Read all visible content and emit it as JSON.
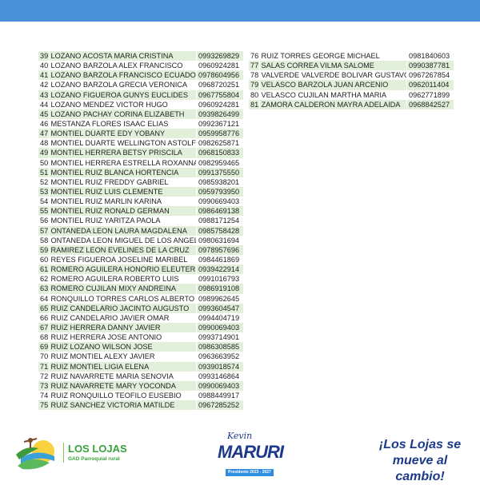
{
  "colors": {
    "header_bar": "#4a90d9",
    "row_alt": "#e2efda"
  },
  "left_table": [
    [
      "39",
      "LOZANO ACOSTA MARIA CRISTINA",
      "0993269829"
    ],
    [
      "40",
      "LOZANO BARZOLA ALEX FRANCISCO",
      "0960924281"
    ],
    [
      "41",
      "LOZANO BARZOLA FRANCISCO ECUADOR",
      "0978604956"
    ],
    [
      "42",
      "LOZANO BARZOLA GRECIA VERONICA",
      "0968720251"
    ],
    [
      "43",
      "LOZANO FIGUEROA GUNYS EUCLIDES",
      "0967755804"
    ],
    [
      "44",
      "LOZANO MENDEZ VICTOR HUGO",
      "0960924281"
    ],
    [
      "45",
      "LOZANO PACHAY CORINA ELIZABETH",
      "0939826499"
    ],
    [
      "46",
      "MESTANZA FLORES ISAAC ELIAS",
      "0992367121"
    ],
    [
      "47",
      "MONTIEL DUARTE EDY YOBANY",
      "0959958776"
    ],
    [
      "48",
      "MONTIEL DUARTE WELLINGTON ASTOLFO",
      "0982625871"
    ],
    [
      "49",
      "MONTIEL HERRERA BETSY PRISCILA",
      "0968150833"
    ],
    [
      "50",
      "MONTIEL HERRERA ESTRELLA ROXANNA",
      "0982959465"
    ],
    [
      "51",
      "MONTIEL RUIZ BLANCA HORTENCIA",
      "0991375550"
    ],
    [
      "52",
      "MONTIEL RUIZ FREDDY GABRIEL",
      "0985938201"
    ],
    [
      "53",
      "MONTIEL RUIZ LUIS CLEMENTE",
      "0959793950"
    ],
    [
      "54",
      "MONTIEL RUIZ MARLIN KARINA",
      "0990669403"
    ],
    [
      "55",
      "MONTIEL RUIZ RONALD GERMAN",
      "0986469138"
    ],
    [
      "56",
      "MONTIEL RUIZ YARITZA PAOLA",
      "0988171254"
    ],
    [
      "57",
      "ONTANEDA LEON LAURA MAGDALENA",
      "0985758428"
    ],
    [
      "58",
      "ONTANEDA LEON MIGUEL DE LOS ANGELES",
      "0980631694"
    ],
    [
      "59",
      "RAMIREZ LEON EVELINES DE LA CRUZ",
      "0978957696"
    ],
    [
      "60",
      "REYES FIGUEROA JOSELINE MARIBEL",
      "0984461869"
    ],
    [
      "61",
      "ROMERO AGUILERA HONORIO ELEUTERIO",
      "0939422914"
    ],
    [
      "62",
      "ROMERO AGUILERA ROBERTO LUIS",
      "0991016793"
    ],
    [
      "63",
      "ROMERO CUJILAN MIXY ANDREINA",
      "0986919108"
    ],
    [
      "64",
      "RONQUILLO TORRES CARLOS ALBERTO",
      "0989962645"
    ],
    [
      "65",
      "RUIZ CANDELARIO JACINTO AUGUSTO",
      "0993604547"
    ],
    [
      "66",
      "RUIZ CANDELARIO JAVIER OMAR",
      "0994404719"
    ],
    [
      "67",
      "RUIZ HERRERA DANNY JAVIER",
      "0990069403"
    ],
    [
      "68",
      "RUIZ HERRERA JOSE ANTONIO",
      "0993714901"
    ],
    [
      "69",
      "RUIZ LOZANO WILSON JOSE",
      "0986308585"
    ],
    [
      "70",
      "RUIZ MONTIEL ALEXY JAVIER",
      "0963663952"
    ],
    [
      "71",
      "RUIZ MONTIEL LIGIA ELENA",
      "0939018574"
    ],
    [
      "72",
      "RUIZ NAVARRETE MARIA SENOVIA",
      "0993146864"
    ],
    [
      "73",
      "RUIZ NAVARRETE MARY YOCONDA",
      "0990069403"
    ],
    [
      "74",
      "RUIZ RONQUILLO TEOFILO EUSEBIO",
      "0988449917"
    ],
    [
      "75",
      "RUIZ SANCHEZ VICTORIA MATILDE",
      "0967285252"
    ]
  ],
  "right_table": [
    [
      "76",
      "RUIZ TORRES GEORGE MICHAEL",
      "0981840603"
    ],
    [
      "77",
      "SALAS CORREA VILMA SALOME",
      "0990387781"
    ],
    [
      "78",
      "VALVERDE VALVERDE BOLIVAR GUSTAVO",
      "0967267854"
    ],
    [
      "79",
      "VELASCO BARZOLA JUAN ARCENIO",
      "0962011404"
    ],
    [
      "80",
      "VELASCO CUJILAN MARTHA MARIA",
      "0962771899"
    ],
    [
      "81",
      "ZAMORA CALDERON MAYRA ADELAIDA",
      "0968842527"
    ]
  ],
  "footer": {
    "logo_title": "LOS LOJAS",
    "logo_subtitle": "GAD Parroquial rural",
    "candidate_first": "Kevin",
    "candidate_last": "MARURI",
    "candidate_role": "Presidente 2023 - 2027",
    "slogan_line1": "¡Los Lojas se",
    "slogan_line2": "mueve al cambio!"
  }
}
